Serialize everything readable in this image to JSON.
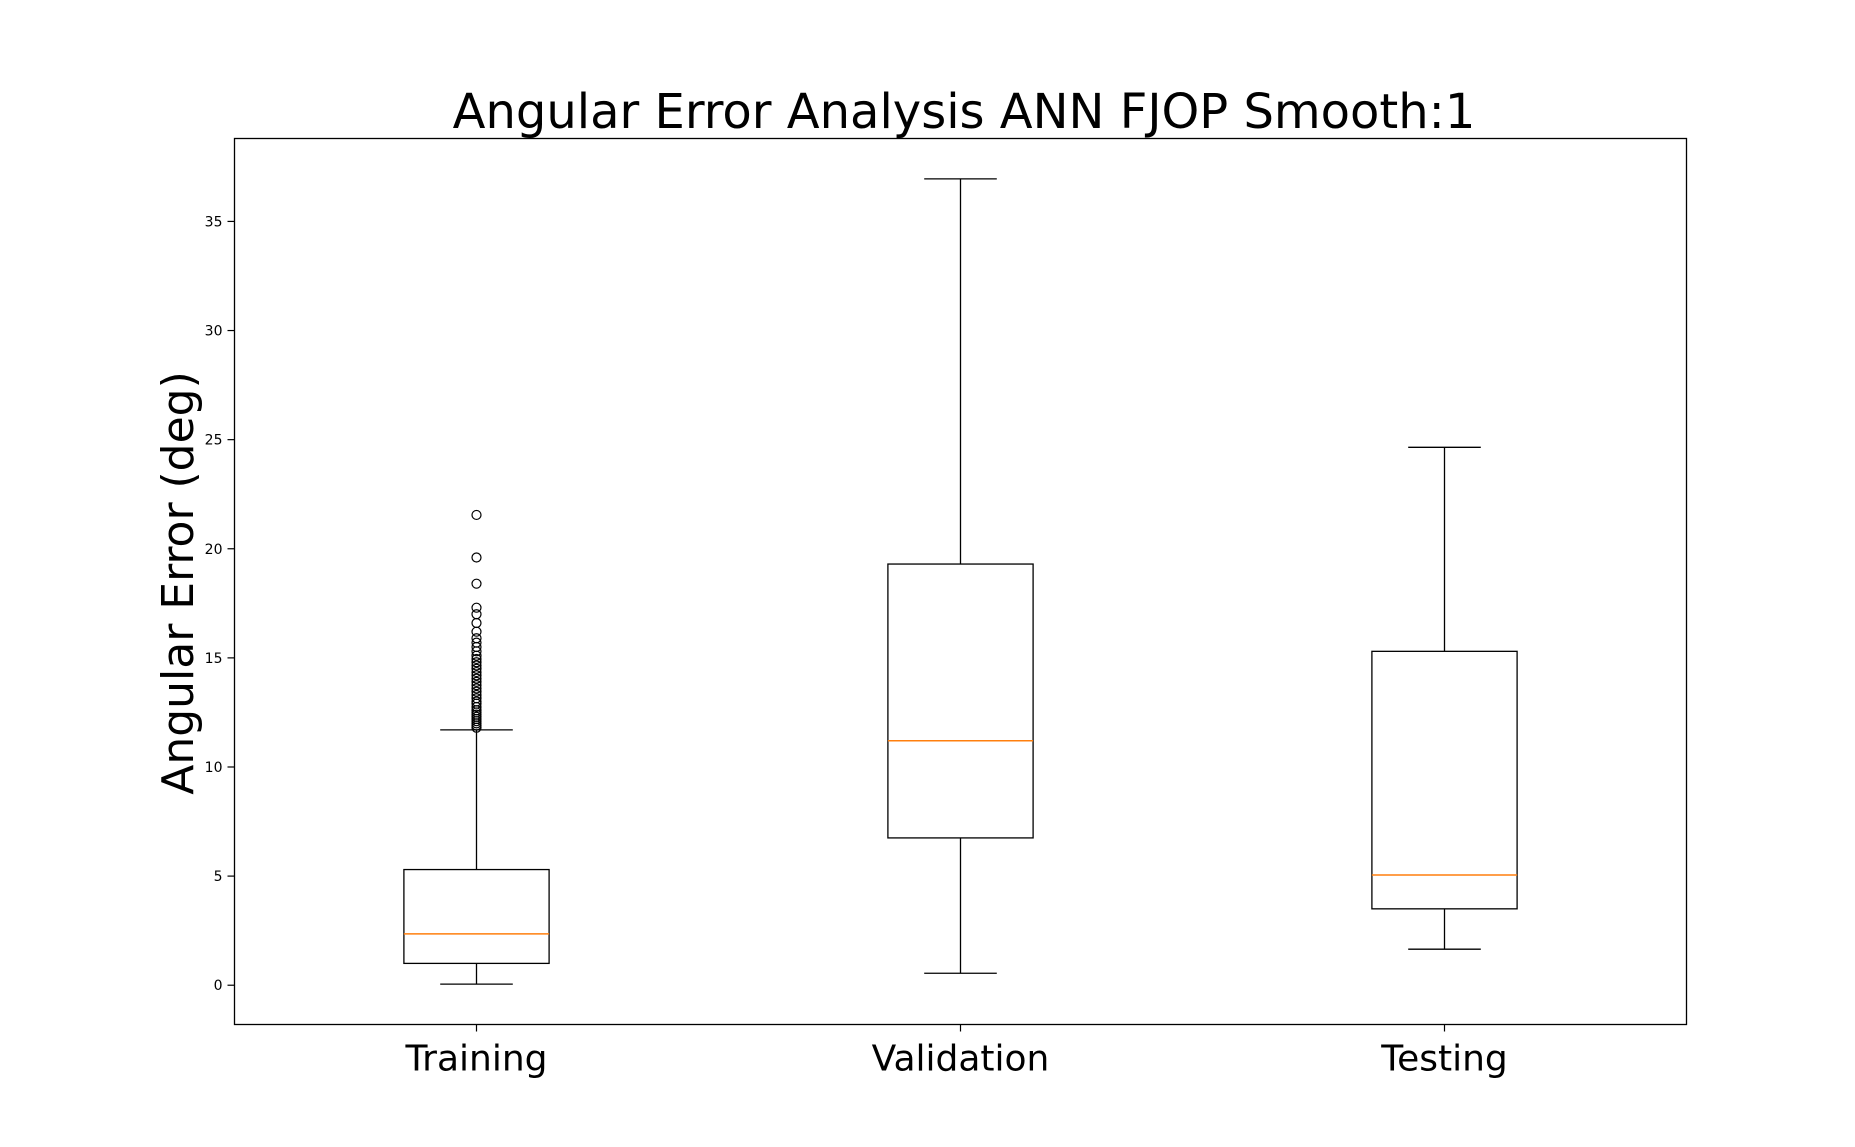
{
  "chart_data": {
    "type": "boxplot",
    "title": "Angular Error Analysis ANN FJOP Smooth:1",
    "xlabel": "",
    "ylabel": "Angular Error (deg)",
    "ylim": [
      -1.8,
      38.8
    ],
    "yticks": [
      0,
      5,
      10,
      15,
      20,
      25,
      30,
      35
    ],
    "grid": false,
    "categories": [
      "Training",
      "Validation",
      "Testing"
    ],
    "boxes": [
      {
        "label": "Training",
        "whisker_low": 0.05,
        "q1": 1.0,
        "median": 2.35,
        "q3": 5.3,
        "whisker_high": 11.7,
        "outliers": [
          11.8,
          11.9,
          12.0,
          12.1,
          12.2,
          12.3,
          12.4,
          12.5,
          12.6,
          12.75,
          12.9,
          13.0,
          13.15,
          13.3,
          13.45,
          13.6,
          13.75,
          13.9,
          14.05,
          14.2,
          14.35,
          14.5,
          14.65,
          14.8,
          14.95,
          15.1,
          15.3,
          15.5,
          15.7,
          15.9,
          16.2,
          16.6,
          17.0,
          17.3,
          18.4,
          19.6,
          21.55
        ]
      },
      {
        "label": "Validation",
        "whisker_low": 0.55,
        "q1": 6.75,
        "median": 11.2,
        "q3": 19.3,
        "whisker_high": 36.95,
        "outliers": []
      },
      {
        "label": "Testing",
        "whisker_low": 1.65,
        "q1": 3.5,
        "median": 5.05,
        "q3": 15.3,
        "whisker_high": 24.65,
        "outliers": []
      }
    ],
    "colors": {
      "box": "#000000",
      "median": "#ff7f0e",
      "outlier": "#000000",
      "axes": "#000000"
    }
  }
}
